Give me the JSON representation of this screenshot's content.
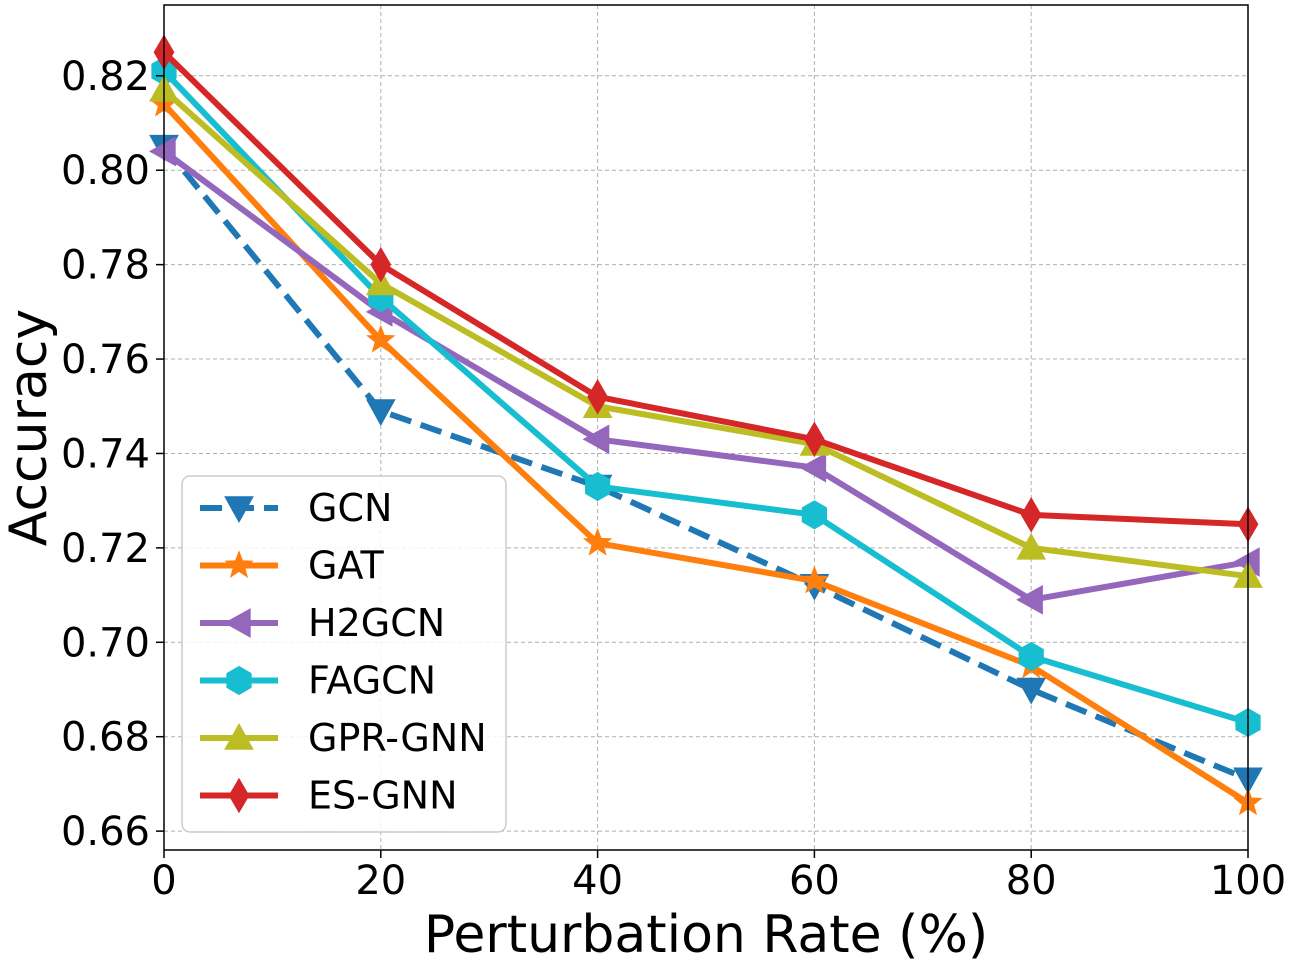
{
  "chart_data": {
    "type": "line",
    "title": "",
    "xlabel": "Perturbation Rate (%)",
    "ylabel": "Accuracy",
    "x": [
      0,
      20,
      40,
      60,
      80,
      100
    ],
    "xlim": [
      0,
      100
    ],
    "ylim": [
      0.656,
      0.835
    ],
    "xticks": [
      0,
      20,
      40,
      60,
      80,
      100
    ],
    "xtick_labels": [
      "0",
      "20",
      "40",
      "60",
      "80",
      "100"
    ],
    "yticks": [
      0.66,
      0.68,
      0.7,
      0.72,
      0.74,
      0.76,
      0.78,
      0.8,
      0.82
    ],
    "ytick_labels": [
      "0.66",
      "0.68",
      "0.70",
      "0.72",
      "0.74",
      "0.76",
      "0.78",
      "0.80",
      "0.82"
    ],
    "grid": true,
    "legend_position": "lower-left",
    "series": [
      {
        "name": "GCN",
        "color": "#1f77b4",
        "marker": "triangle-down",
        "dashed": true,
        "values": [
          0.805,
          0.749,
          0.733,
          0.712,
          0.69,
          0.671
        ]
      },
      {
        "name": "GAT",
        "color": "#ff7f0e",
        "marker": "star",
        "dashed": false,
        "values": [
          0.814,
          0.764,
          0.721,
          0.713,
          0.695,
          0.666
        ]
      },
      {
        "name": "H2GCN",
        "color": "#9467bd",
        "marker": "triangle-left",
        "dashed": false,
        "values": [
          0.804,
          0.77,
          0.743,
          0.737,
          0.709,
          0.717
        ]
      },
      {
        "name": "FAGCN",
        "color": "#17becf",
        "marker": "hexagon",
        "dashed": false,
        "values": [
          0.821,
          0.773,
          0.733,
          0.727,
          0.697,
          0.683
        ]
      },
      {
        "name": "GPR-GNN",
        "color": "#bcbd22",
        "marker": "triangle-up",
        "dashed": false,
        "values": [
          0.817,
          0.776,
          0.75,
          0.742,
          0.72,
          0.714
        ]
      },
      {
        "name": "ES-GNN",
        "color": "#d62728",
        "marker": "diamond",
        "dashed": false,
        "values": [
          0.825,
          0.78,
          0.752,
          0.743,
          0.727,
          0.725
        ]
      }
    ]
  }
}
